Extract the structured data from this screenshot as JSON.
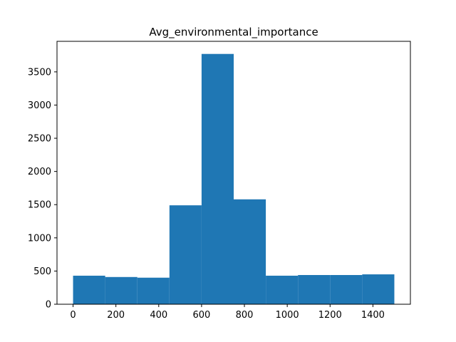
{
  "chart_data": {
    "type": "bar",
    "title": "Avg_environmental_importance",
    "xlabel": "",
    "ylabel": "",
    "bar_color": "#1f77b4",
    "bin_edges": [
      0,
      150,
      300,
      450,
      600,
      750,
      900,
      1050,
      1200,
      1350,
      1500
    ],
    "values": [
      430,
      410,
      400,
      1490,
      3770,
      1580,
      430,
      440,
      440,
      450
    ],
    "xlim": [
      -75,
      1575
    ],
    "ylim": [
      0,
      3960
    ],
    "x_ticks": [
      0,
      200,
      400,
      600,
      800,
      1000,
      1200,
      1400
    ],
    "x_tick_labels": [
      "0",
      "200",
      "400",
      "600",
      "800",
      "1000",
      "1200",
      "1400"
    ],
    "y_ticks": [
      0,
      500,
      1000,
      1500,
      2000,
      2500,
      3000,
      3500
    ],
    "y_tick_labels": [
      "0",
      "500",
      "1000",
      "1500",
      "2000",
      "2500",
      "3000",
      "3500"
    ],
    "grid": false,
    "legend": "none"
  }
}
